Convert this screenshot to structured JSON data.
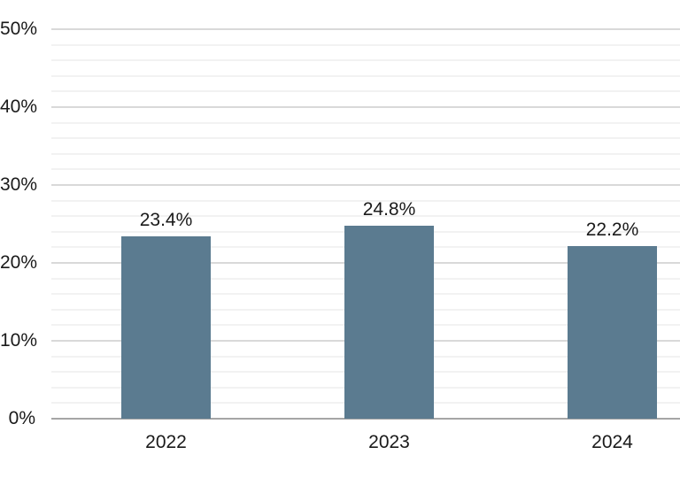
{
  "chart_data": {
    "type": "bar",
    "title": "",
    "xlabel": "",
    "ylabel": "",
    "categories": [
      "2022",
      "2023",
      "2024"
    ],
    "values": [
      23.4,
      24.8,
      22.2
    ],
    "data_labels": [
      "23.4%",
      "24.8%",
      "22.2%"
    ],
    "ylim": [
      0,
      50
    ],
    "ytick_step_major": 10,
    "ytick_step_minor": 2,
    "ytick_labels": [
      "0%",
      "10%",
      "20%",
      "30%",
      "40%",
      "50%"
    ],
    "grid": "horizontal major and minor gridlines, no vertical gridlines",
    "legend": "none",
    "colors": {
      "bar": "#5b7b90",
      "major_gridline": "#d9d9d9",
      "minor_gridline": "#f2f2f2",
      "axis_line": "#a6a6a6",
      "text": "#1a1a1a",
      "background": "#ffffff"
    }
  }
}
